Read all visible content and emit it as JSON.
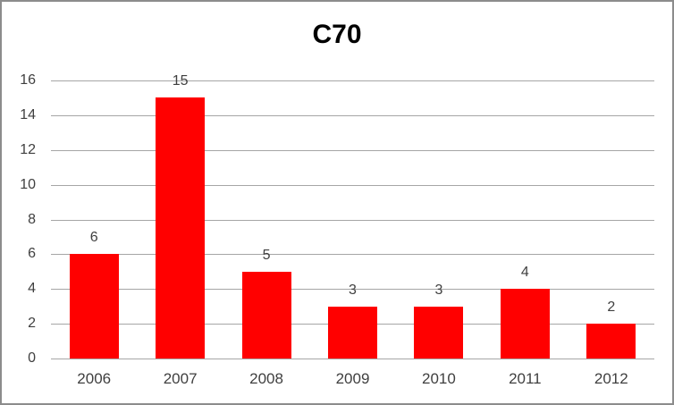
{
  "window": {
    "background_color": "#FFFFFF",
    "border_color": "#8C8C8C"
  },
  "chart_data": {
    "type": "bar",
    "title": "C70",
    "categories": [
      "2006",
      "2007",
      "2008",
      "2009",
      "2010",
      "2011",
      "2012"
    ],
    "values": [
      6,
      15,
      5,
      3,
      3,
      4,
      2
    ],
    "data_labels": [
      "6",
      "15",
      "5",
      "3",
      "3",
      "4",
      "2"
    ],
    "xlabel": "",
    "ylabel": "",
    "ylim": [
      0,
      16
    ],
    "yticks": [
      0,
      2,
      4,
      6,
      8,
      10,
      12,
      14,
      16
    ],
    "grid": true,
    "legend": "none",
    "bar_color": "#FF0000",
    "gridline_color": "#A6A6A6",
    "tick_label_color": "#3F3F3F",
    "title_color": "#000000"
  }
}
